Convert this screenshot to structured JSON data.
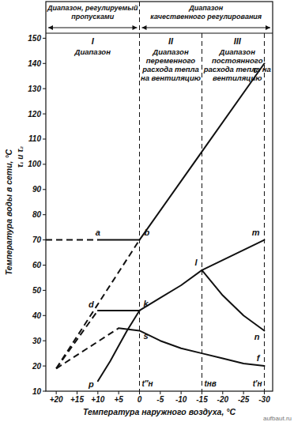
{
  "chart_data": {
    "type": "line",
    "color": "#111111",
    "x_label": "Температура наружного воздуха, °C",
    "y_label": "Температура воды в сети, °C",
    "y_label_symbols": "τ₁ и τ₂",
    "xlim": [
      22.5,
      -32
    ],
    "ylim": [
      10,
      152
    ],
    "xticks": [
      {
        "value": 20,
        "label": "+20"
      },
      {
        "value": 15,
        "label": "+15"
      },
      {
        "value": 10,
        "label": "+10"
      },
      {
        "value": 5,
        "label": "+5"
      },
      0,
      -5,
      -10,
      -15,
      -20,
      -25,
      -30
    ],
    "yticks": [
      10,
      20,
      30,
      40,
      50,
      60,
      70,
      80,
      90,
      100,
      110,
      120,
      130,
      140,
      150
    ],
    "series": [
      {
        "x": [
          20,
          0
        ],
        "values": [
          19,
          70
        ],
        "line_style": "dashed"
      },
      {
        "x": [
          0,
          -15,
          -30
        ],
        "values": [
          70,
          105,
          140
        ],
        "line_style": "solid"
      },
      {
        "x": [
          22.5,
          10
        ],
        "values": [
          70,
          70
        ],
        "line_style": "dashed"
      },
      {
        "x": [
          10,
          0
        ],
        "values": [
          70,
          70
        ],
        "line_style": "solid"
      },
      {
        "x": [
          20,
          10
        ],
        "values": [
          19,
          42
        ],
        "line_style": "dashed"
      },
      {
        "x": [
          10,
          0
        ],
        "values": [
          42,
          42
        ],
        "line_style": "solid"
      },
      {
        "x": [
          20,
          5
        ],
        "values": [
          19,
          35
        ],
        "line_style": "dashed"
      },
      {
        "x": [
          5,
          0,
          -5,
          -10,
          -15,
          -20,
          -25,
          -30
        ],
        "values": [
          35,
          34,
          30,
          27,
          25,
          23,
          21,
          20
        ],
        "line_style": "solid"
      },
      {
        "x": [
          10,
          7,
          5,
          3,
          0
        ],
        "values": [
          14,
          22,
          28,
          34,
          42
        ],
        "line_style": "solid"
      },
      {
        "x": [
          0,
          -5,
          -10,
          -15,
          -20,
          -25,
          -30
        ],
        "values": [
          42,
          47,
          52,
          58,
          62,
          66,
          70
        ],
        "line_style": "solid"
      },
      {
        "x": [
          -15,
          -20,
          -25,
          -30
        ],
        "values": [
          58,
          48,
          40,
          34
        ],
        "line_style": "solid"
      }
    ],
    "ranges": [
      {
        "lines": [
          "Диапазон, регулируемый",
          "пропусками"
        ]
      },
      {
        "lines": [
          "Диапазон",
          "качественного регулирования"
        ]
      }
    ],
    "regions": [
      {
        "numeral": "I",
        "lines": [
          "Диапазон"
        ]
      },
      {
        "numeral": "II",
        "lines": [
          "Диапазон",
          "переменного",
          "расхода тепла",
          "на вентиляцию"
        ]
      },
      {
        "numeral": "III",
        "lines": [
          "Диапазон",
          "постоянного",
          "расхода тепла на",
          "вентиляцию"
        ]
      }
    ],
    "vlines": [
      {
        "x": 0,
        "label": "t″н"
      },
      {
        "x": -15,
        "label": "tнв"
      },
      {
        "x": -30,
        "label": "t′н"
      }
    ],
    "point_labels": [
      {
        "text": "a",
        "x": 10,
        "y": 70
      },
      {
        "text": "b",
        "x": 0,
        "y": 70
      },
      {
        "text": "c",
        "x": -30,
        "y": 140
      },
      {
        "text": "m",
        "x": -30,
        "y": 70
      },
      {
        "text": "l",
        "x": -15,
        "y": 58
      },
      {
        "text": "n",
        "x": -30,
        "y": 34
      },
      {
        "text": "f",
        "x": -30,
        "y": 20
      },
      {
        "text": "d",
        "x": 10,
        "y": 42
      },
      {
        "text": "k",
        "x": 0,
        "y": 42
      },
      {
        "text": "s",
        "x": 0,
        "y": 34
      },
      {
        "text": "p",
        "x": 10,
        "y": 14
      }
    ],
    "source": "aufbaut.ru"
  }
}
